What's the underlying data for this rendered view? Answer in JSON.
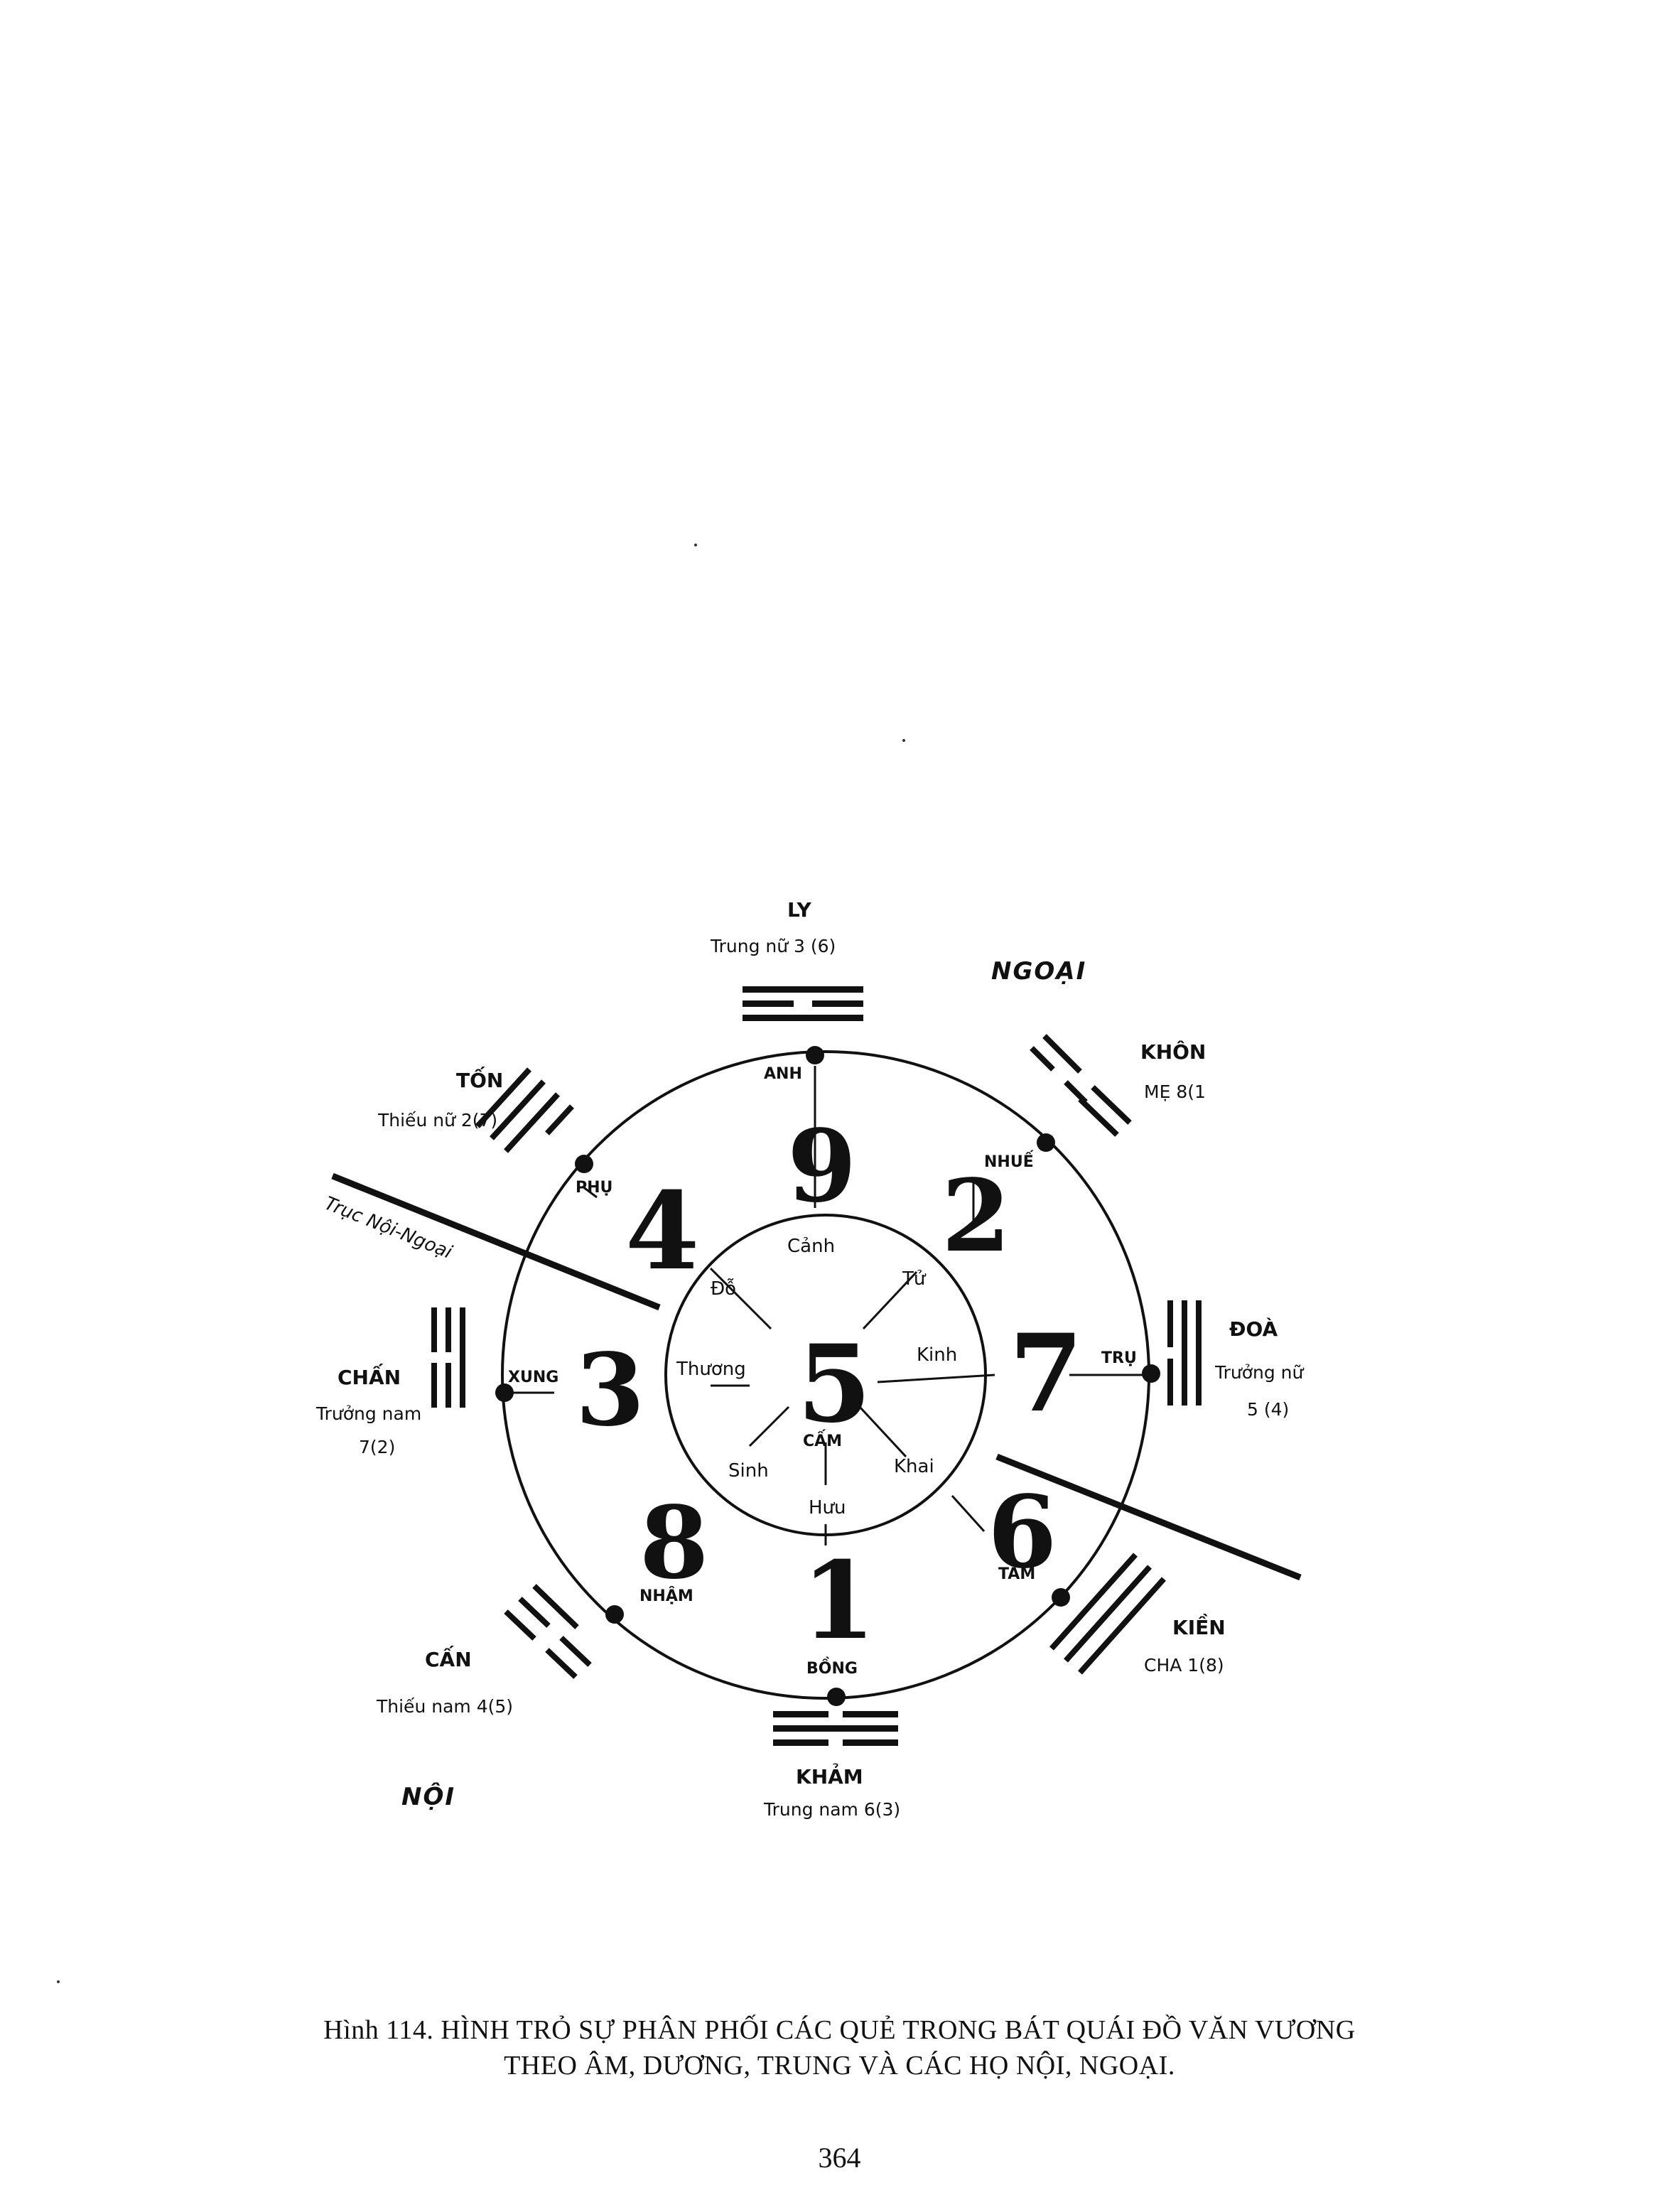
{
  "diagram": {
    "region_outer": "NGOẠI",
    "region_inner": "NỘI",
    "axis_label": "Trục Nội-Ngoại",
    "center": {
      "number": "5",
      "star": "CẤM"
    },
    "directions": {
      "south": {
        "number": "9",
        "gate": "Cảnh",
        "star": "ANH",
        "trigram": "LY",
        "relation": "Trung nữ 3 (6)"
      },
      "southwest": {
        "number": "2",
        "gate": "Tử",
        "star": "NHUẾ",
        "trigram": "KHÔN",
        "relation": "MẸ 8(1"
      },
      "west": {
        "number": "7",
        "gate": "Kinh",
        "star": "TRỤ",
        "trigram": "ĐOÀ",
        "relation_line1": "Trưởng nữ",
        "relation_line2": "5 (4)"
      },
      "northwest": {
        "number": "6",
        "gate": "Khai",
        "star": "TÂM",
        "trigram": "KIỀN",
        "relation": "CHA  1(8)"
      },
      "north": {
        "number": "1",
        "gate": "Hưu",
        "star": "BỒNG",
        "trigram": "KHẢM",
        "relation": "Trung nam 6(3)"
      },
      "northeast": {
        "number": "8",
        "gate": "Sinh",
        "star": "NHẬM",
        "trigram": "CẤN",
        "relation": "Thiếu nam 4(5)"
      },
      "east": {
        "number": "3",
        "gate": "Thương",
        "star": "XUNG",
        "trigram": "CHẤN",
        "relation_line1": "Trưởng nam",
        "relation_line2": "7(2)"
      },
      "southeast": {
        "number": "4",
        "gate": "Đỗ",
        "star": "PHỤ",
        "trigram": "TỐN",
        "relation": "Thiếu nữ 2(7)"
      }
    }
  },
  "caption": {
    "line1": "Hình 114. HÌNH TRỎ SỰ PHÂN PHỐI  CÁC QUẺ TRONG BÁT QUÁI ĐỒ VĂN VƯƠNG",
    "line2": "THEO ÂM, DƯƠNG, TRUNG VÀ CÁC HỌ NỘI, NGOẠI."
  },
  "page_number": "364"
}
